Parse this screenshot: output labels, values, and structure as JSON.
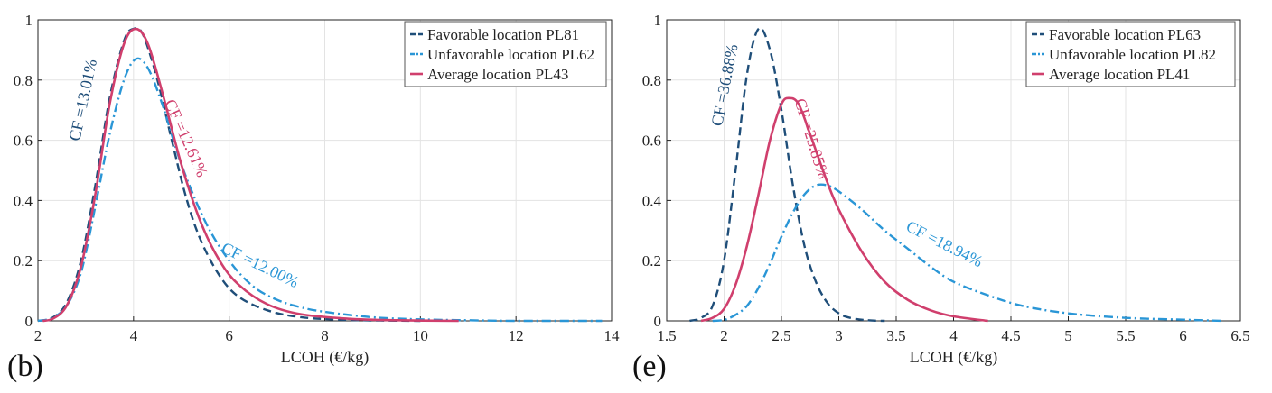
{
  "chart_data": [
    {
      "type": "line",
      "panel_label": "(b)",
      "xlabel": "LCOH (€/kg)",
      "ylabel": "",
      "xlim": [
        2,
        14
      ],
      "ylim": [
        0,
        1
      ],
      "xticks": [
        "2",
        "4",
        "6",
        "8",
        "10",
        "12",
        "14"
      ],
      "yticks": [
        "0",
        "0.2",
        "0.4",
        "0.6",
        "0.8",
        "1"
      ],
      "grid": true,
      "legend_position": "top-right",
      "series": [
        {
          "name": "Favorable location PL81",
          "color": "#1f4e79",
          "dash": "dashed",
          "points": [
            [
              2.0,
              0
            ],
            [
              2.3,
              0.01
            ],
            [
              2.6,
              0.06
            ],
            [
              2.9,
              0.2
            ],
            [
              3.2,
              0.45
            ],
            [
              3.5,
              0.74
            ],
            [
              3.8,
              0.93
            ],
            [
              4.0,
              0.97
            ],
            [
              4.2,
              0.95
            ],
            [
              4.5,
              0.8
            ],
            [
              4.8,
              0.6
            ],
            [
              5.1,
              0.41
            ],
            [
              5.4,
              0.27
            ],
            [
              5.8,
              0.15
            ],
            [
              6.2,
              0.08
            ],
            [
              6.8,
              0.035
            ],
            [
              7.5,
              0.012
            ],
            [
              8.5,
              0.003
            ],
            [
              10,
              0
            ]
          ]
        },
        {
          "name": "Unfavorable location PL62",
          "color": "#2a96d6",
          "dash": "dashdot",
          "points": [
            [
              2.0,
              0
            ],
            [
              2.3,
              0.01
            ],
            [
              2.6,
              0.05
            ],
            [
              2.9,
              0.16
            ],
            [
              3.2,
              0.38
            ],
            [
              3.5,
              0.62
            ],
            [
              3.8,
              0.8
            ],
            [
              4.05,
              0.87
            ],
            [
              4.3,
              0.84
            ],
            [
              4.6,
              0.72
            ],
            [
              5.0,
              0.52
            ],
            [
              5.5,
              0.33
            ],
            [
              6.0,
              0.2
            ],
            [
              6.5,
              0.115
            ],
            [
              7.0,
              0.07
            ],
            [
              7.5,
              0.045
            ],
            [
              8.0,
              0.03
            ],
            [
              9.0,
              0.012
            ],
            [
              10,
              0.005
            ],
            [
              11,
              0.002
            ],
            [
              12,
              0
            ],
            [
              13.8,
              0
            ]
          ]
        },
        {
          "name": "Average location PL43",
          "color": "#d03f6d",
          "dash": "solid",
          "points": [
            [
              2.1,
              0
            ],
            [
              2.3,
              0.006
            ],
            [
              2.6,
              0.05
            ],
            [
              2.9,
              0.18
            ],
            [
              3.2,
              0.42
            ],
            [
              3.5,
              0.72
            ],
            [
              3.8,
              0.92
            ],
            [
              4.05,
              0.97
            ],
            [
              4.3,
              0.92
            ],
            [
              4.6,
              0.76
            ],
            [
              5.0,
              0.52
            ],
            [
              5.4,
              0.33
            ],
            [
              5.8,
              0.2
            ],
            [
              6.2,
              0.12
            ],
            [
              6.8,
              0.055
            ],
            [
              7.5,
              0.022
            ],
            [
              8.5,
              0.007
            ],
            [
              9.5,
              0.002
            ],
            [
              10.8,
              0
            ]
          ]
        }
      ],
      "annotations": [
        {
          "text": "CF =13.01%",
          "x": 3.05,
          "y": 0.73,
          "rotate": -78,
          "color": "#1f4e79"
        },
        {
          "text": "CF =12.61%",
          "x": 5.0,
          "y": 0.6,
          "rotate": 66,
          "color": "#d03f6d"
        },
        {
          "text": "CF =12.00%",
          "x": 6.6,
          "y": 0.17,
          "rotate": 26,
          "color": "#2a96d6"
        }
      ]
    },
    {
      "type": "line",
      "panel_label": "(e)",
      "xlabel": "LCOH (€/kg)",
      "ylabel": "",
      "xlim": [
        1.5,
        6.5
      ],
      "ylim": [
        0,
        1
      ],
      "xticks": [
        "1.5",
        "2",
        "2.5",
        "3",
        "3.5",
        "4",
        "4.5",
        "5",
        "5.5",
        "6",
        "6.5"
      ],
      "yticks": [
        "0",
        "0.2",
        "0.4",
        "0.6",
        "0.8",
        "1"
      ],
      "grid": true,
      "legend_position": "top-right",
      "series": [
        {
          "name": "Favorable location PL63",
          "color": "#1f4e79",
          "dash": "dashed",
          "points": [
            [
              1.7,
              0
            ],
            [
              1.8,
              0.01
            ],
            [
              1.9,
              0.05
            ],
            [
              2.0,
              0.2
            ],
            [
              2.1,
              0.5
            ],
            [
              2.2,
              0.82
            ],
            [
              2.3,
              0.97
            ],
            [
              2.4,
              0.9
            ],
            [
              2.5,
              0.7
            ],
            [
              2.6,
              0.45
            ],
            [
              2.7,
              0.25
            ],
            [
              2.8,
              0.13
            ],
            [
              2.9,
              0.06
            ],
            [
              3.0,
              0.025
            ],
            [
              3.1,
              0.01
            ],
            [
              3.25,
              0.002
            ],
            [
              3.4,
              0
            ]
          ]
        },
        {
          "name": "Unfavorable location PL82",
          "color": "#2a96d6",
          "dash": "dashdot",
          "points": [
            [
              1.9,
              0
            ],
            [
              2.0,
              0.003
            ],
            [
              2.1,
              0.02
            ],
            [
              2.2,
              0.05
            ],
            [
              2.3,
              0.11
            ],
            [
              2.4,
              0.19
            ],
            [
              2.5,
              0.28
            ],
            [
              2.6,
              0.36
            ],
            [
              2.7,
              0.42
            ],
            [
              2.8,
              0.45
            ],
            [
              2.9,
              0.45
            ],
            [
              3.0,
              0.43
            ],
            [
              3.2,
              0.37
            ],
            [
              3.4,
              0.3
            ],
            [
              3.6,
              0.24
            ],
            [
              3.8,
              0.18
            ],
            [
              4.0,
              0.13
            ],
            [
              4.3,
              0.085
            ],
            [
              4.6,
              0.05
            ],
            [
              5.0,
              0.025
            ],
            [
              5.5,
              0.01
            ],
            [
              6.0,
              0.004
            ],
            [
              6.35,
              0
            ]
          ]
        },
        {
          "name": "Average location PL41",
          "color": "#d03f6d",
          "dash": "solid",
          "points": [
            [
              1.8,
              0
            ],
            [
              1.9,
              0.01
            ],
            [
              2.0,
              0.04
            ],
            [
              2.1,
              0.12
            ],
            [
              2.2,
              0.25
            ],
            [
              2.3,
              0.42
            ],
            [
              2.4,
              0.6
            ],
            [
              2.5,
              0.72
            ],
            [
              2.57,
              0.74
            ],
            [
              2.65,
              0.72
            ],
            [
              2.75,
              0.62
            ],
            [
              2.9,
              0.46
            ],
            [
              3.0,
              0.37
            ],
            [
              3.2,
              0.23
            ],
            [
              3.4,
              0.13
            ],
            [
              3.6,
              0.07
            ],
            [
              3.8,
              0.035
            ],
            [
              4.0,
              0.015
            ],
            [
              4.3,
              0
            ]
          ]
        }
      ],
      "annotations": [
        {
          "text": "CF =36.88%",
          "x": 2.05,
          "y": 0.78,
          "rotate": -79,
          "color": "#1f4e79"
        },
        {
          "text": "CF =25.85%",
          "x": 2.72,
          "y": 0.6,
          "rotate": 73,
          "color": "#d03f6d"
        },
        {
          "text": "CF =18.94%",
          "x": 3.9,
          "y": 0.24,
          "rotate": 27,
          "color": "#2a96d6"
        }
      ]
    }
  ]
}
